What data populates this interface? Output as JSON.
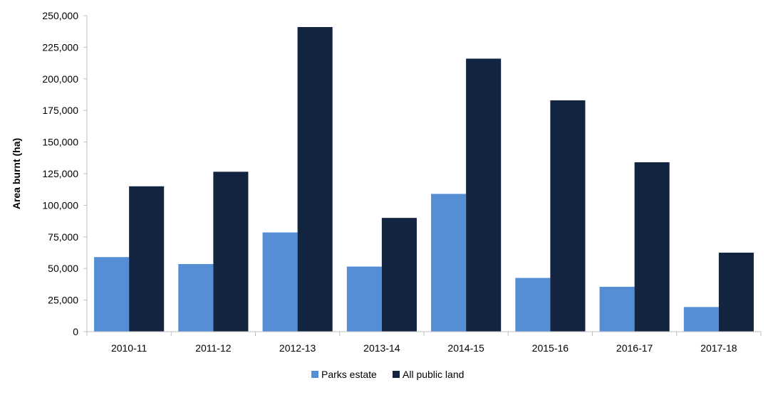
{
  "chart_data": {
    "type": "bar",
    "categories": [
      "2010-11",
      "2011-12",
      "2012-13",
      "2013-14",
      "2014-15",
      "2015-16",
      "2016-17",
      "2017-18"
    ],
    "series": [
      {
        "name": "Parks estate",
        "color": "#558ed5",
        "values": [
          59000,
          53500,
          78500,
          51500,
          109000,
          42500,
          35500,
          19500
        ]
      },
      {
        "name": "All public land",
        "color": "#12243f",
        "values": [
          115000,
          126500,
          241000,
          90000,
          216000,
          183000,
          134000,
          62500
        ]
      }
    ],
    "title": "",
    "xlabel": "",
    "ylabel": "Area burnt (ha)",
    "ylim": [
      0,
      250000
    ],
    "yticks": [
      "0",
      "25,000",
      "50,000",
      "75,000",
      "100,000",
      "125,000",
      "150,000",
      "175,000",
      "200,000",
      "225,000",
      "250,000"
    ],
    "ytick_values": [
      0,
      25000,
      50000,
      75000,
      100000,
      125000,
      150000,
      175000,
      200000,
      225000,
      250000
    ],
    "grid": false,
    "legend_position": "bottom"
  }
}
